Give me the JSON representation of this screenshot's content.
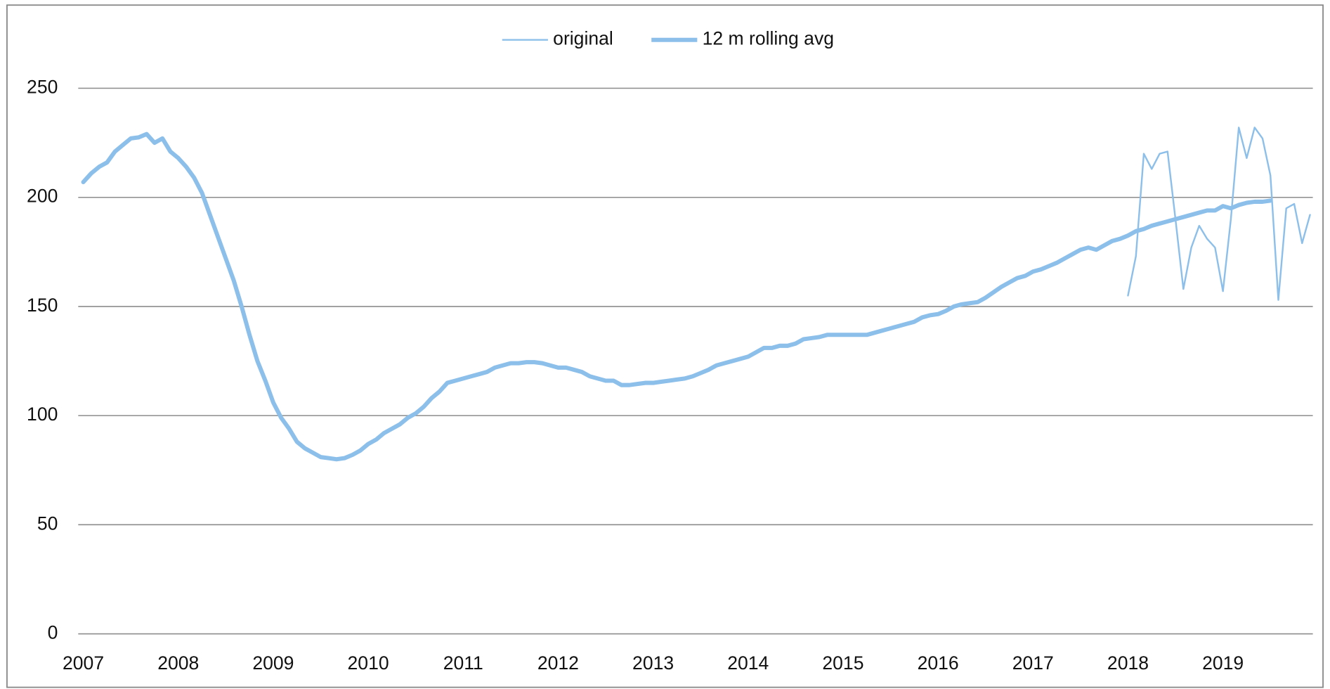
{
  "chart_data": {
    "type": "line",
    "categories": [
      "2007",
      null,
      null,
      null,
      null,
      null,
      null,
      null,
      null,
      null,
      null,
      null,
      "2008",
      null,
      null,
      null,
      null,
      null,
      null,
      null,
      null,
      null,
      null,
      null,
      "2009",
      null,
      null,
      null,
      null,
      null,
      null,
      null,
      null,
      null,
      null,
      null,
      "2010",
      null,
      null,
      null,
      null,
      null,
      null,
      null,
      null,
      null,
      null,
      null,
      "2011",
      null,
      null,
      null,
      null,
      null,
      null,
      null,
      null,
      null,
      null,
      null,
      "2012",
      null,
      null,
      null,
      null,
      null,
      null,
      null,
      null,
      null,
      null,
      null,
      "2013",
      null,
      null,
      null,
      null,
      null,
      null,
      null,
      null,
      null,
      null,
      null,
      "2014",
      null,
      null,
      null,
      null,
      null,
      null,
      null,
      null,
      null,
      null,
      null,
      "2015",
      null,
      null,
      null,
      null,
      null,
      null,
      null,
      null,
      null,
      null,
      null,
      "2016",
      null,
      null,
      null,
      null,
      null,
      null,
      null,
      null,
      null,
      null,
      null,
      "2017",
      null,
      null,
      null,
      null,
      null,
      null,
      null,
      null,
      null,
      null,
      null,
      "2018",
      null,
      null,
      null,
      null,
      null,
      null,
      null,
      null,
      null,
      null,
      null,
      "2019",
      null,
      null,
      null,
      null,
      null,
      null,
      null,
      null,
      null,
      null,
      null
    ],
    "series": [
      {
        "name": "original",
        "color": "#8cbfea",
        "width": 2,
        "values": [
          null,
          null,
          null,
          null,
          null,
          null,
          null,
          null,
          null,
          null,
          null,
          null,
          null,
          null,
          null,
          null,
          null,
          null,
          null,
          null,
          null,
          null,
          null,
          null,
          null,
          null,
          null,
          null,
          null,
          null,
          null,
          null,
          null,
          null,
          null,
          null,
          null,
          null,
          null,
          null,
          null,
          null,
          null,
          null,
          null,
          null,
          null,
          null,
          null,
          null,
          null,
          null,
          null,
          null,
          null,
          null,
          null,
          null,
          null,
          null,
          null,
          null,
          null,
          null,
          null,
          null,
          null,
          null,
          null,
          null,
          null,
          null,
          null,
          null,
          null,
          null,
          null,
          null,
          null,
          null,
          null,
          null,
          null,
          null,
          null,
          null,
          null,
          null,
          null,
          null,
          null,
          null,
          null,
          null,
          null,
          null,
          null,
          null,
          null,
          null,
          null,
          null,
          null,
          null,
          null,
          null,
          null,
          null,
          null,
          null,
          null,
          null,
          null,
          null,
          null,
          null,
          null,
          null,
          null,
          null,
          null,
          null,
          null,
          null,
          null,
          null,
          null,
          null,
          null,
          null,
          null,
          null,
          155,
          173,
          220,
          213,
          220,
          221,
          190,
          158,
          177,
          187,
          181,
          177,
          157,
          190,
          232,
          218,
          232,
          227,
          210,
          153,
          195,
          197,
          179,
          192
        ]
      },
      {
        "name": "12 m rolling avg",
        "color": "#8cbfea",
        "width": 5,
        "values": [
          207,
          211,
          214,
          216,
          221,
          224,
          227,
          227.5,
          229,
          225,
          227,
          221,
          218,
          214,
          209,
          202,
          192,
          182,
          172,
          162,
          150,
          137,
          125,
          116,
          106,
          99,
          94,
          88,
          85,
          83,
          81,
          80.5,
          80,
          80.5,
          82,
          84,
          87,
          89,
          92,
          94,
          96,
          99,
          101,
          104,
          108,
          111,
          115,
          116,
          117,
          118,
          119,
          120,
          122,
          123,
          124,
          124,
          124.5,
          124.5,
          124,
          123,
          122,
          122,
          121,
          120,
          118,
          117,
          116,
          116,
          114,
          114,
          114.5,
          115,
          115,
          115.5,
          116,
          116.5,
          117,
          118,
          119.5,
          121,
          123,
          124,
          125,
          126,
          127,
          129,
          131,
          131,
          132,
          132,
          133,
          135,
          135.5,
          136,
          137,
          137,
          137,
          137,
          137,
          137,
          138,
          139,
          140,
          141,
          142,
          143,
          145,
          146,
          146.5,
          148,
          150,
          151,
          151.5,
          152,
          154,
          156.5,
          159,
          161,
          163,
          164,
          166,
          167,
          168.5,
          170,
          172,
          174,
          176,
          177,
          176,
          178,
          180,
          181,
          182.5,
          184.5,
          185.5,
          187,
          188,
          189,
          190,
          191,
          192,
          193,
          194,
          194,
          196,
          195,
          196.5,
          197.5,
          198,
          198,
          198.5,
          null,
          null,
          null,
          null,
          null
        ]
      }
    ],
    "ylim": [
      0,
      250
    ],
    "yticks": [
      0,
      50,
      100,
      150,
      200,
      250
    ],
    "grid": true,
    "legend": "top"
  }
}
